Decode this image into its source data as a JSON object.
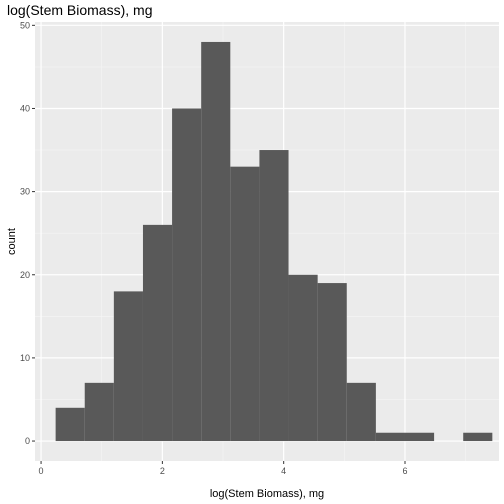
{
  "chart_data": {
    "type": "bar",
    "title": "log(Stem Biomass), mg",
    "xlabel": "log(Stem Biomass), mg",
    "ylabel": "count",
    "bin_width": 0.48,
    "bin_starts": [
      0.24,
      0.72,
      1.2,
      1.68,
      2.16,
      2.64,
      3.12,
      3.6,
      4.08,
      4.56,
      5.04,
      5.52,
      6.0,
      6.48,
      6.96
    ],
    "values": [
      4,
      7,
      18,
      26,
      40,
      48,
      33,
      35,
      20,
      19,
      7,
      1,
      1,
      0,
      1
    ],
    "xlim": [
      -0.1,
      7.55
    ],
    "ylim": [
      -2.4,
      50.4
    ],
    "x_ticks": [
      0,
      2,
      4,
      6
    ],
    "y_ticks": [
      0,
      10,
      20,
      30,
      40,
      50
    ],
    "grid": true,
    "colors": {
      "bar": "#595959",
      "panel": "#ebebeb",
      "grid_major": "#ffffff",
      "grid_minor": "#f5f5f5"
    }
  }
}
